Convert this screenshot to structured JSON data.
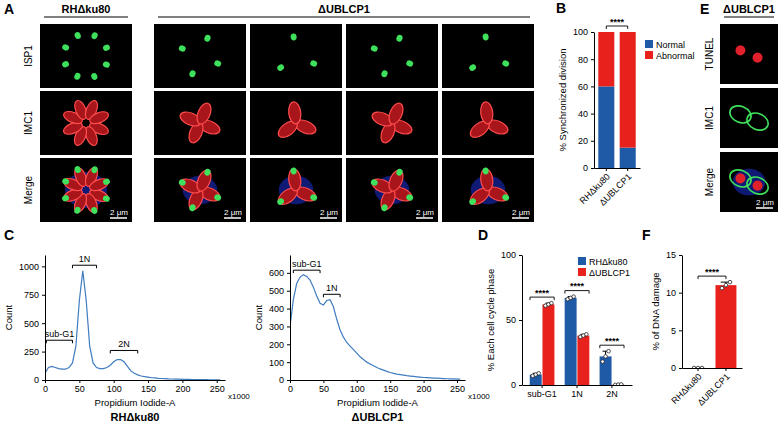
{
  "figure_panels": [
    {
      "panel": "A",
      "columns": [
        "RHΔku80",
        "ΔUBLCP1",
        "ΔUBLCP1",
        "ΔUBLCP1",
        "ΔUBLCP1"
      ],
      "rows": [
        "ISP1",
        "IMC1",
        "Merge"
      ],
      "scale_bar": "2 μm"
    },
    {
      "panel": "E",
      "columns": [
        "ΔUBLCP1"
      ],
      "rows": [
        "TUNEL",
        "IMC1",
        "Merge"
      ],
      "scale_bar": "2 μm"
    }
  ],
  "chart_data": [
    {
      "panel": "B",
      "type": "bar",
      "stacked": true,
      "categories": [
        "RHΔku80",
        "ΔUBLCP1"
      ],
      "series": [
        {
          "name": "Normal",
          "color": "#1f5aa6",
          "values": [
            60,
            15
          ]
        },
        {
          "name": "Abnormal",
          "color": "#e8211c",
          "values": [
            40,
            85
          ]
        }
      ],
      "ylim": [
        0,
        100
      ],
      "yticks": [
        0,
        20,
        40,
        60,
        80,
        100
      ],
      "y_label": "% Synchronized division",
      "legend": "right",
      "annotations": [
        {
          "text": "****",
          "between": [
            "RHΔku80",
            "ΔUBLCP1"
          ]
        }
      ]
    },
    {
      "panel": "C",
      "type": "line",
      "title": "RHΔku80",
      "x_label": "Propidium Iodide-A",
      "y_label": "Count",
      "x_unit": "x1000",
      "color": "#3f7cc0",
      "x": [
        0,
        5,
        10,
        15,
        20,
        25,
        30,
        35,
        40,
        45,
        50,
        55,
        60,
        65,
        70,
        75,
        80,
        85,
        90,
        95,
        100,
        105,
        110,
        115,
        120,
        125,
        130,
        135,
        140,
        145,
        150,
        155,
        160,
        165,
        170,
        175,
        180,
        185,
        190,
        195,
        200,
        205,
        210,
        215,
        220,
        225,
        230,
        235,
        240,
        245,
        250,
        255
      ],
      "values": [
        60,
        110,
        120,
        110,
        100,
        95,
        95,
        110,
        150,
        300,
        700,
        960,
        700,
        300,
        150,
        110,
        100,
        100,
        110,
        130,
        160,
        180,
        180,
        160,
        120,
        80,
        60,
        45,
        35,
        30,
        25,
        20,
        18,
        15,
        13,
        12,
        10,
        9,
        8,
        7,
        6,
        5,
        5,
        4,
        4,
        3,
        3,
        3,
        2,
        2,
        2,
        1
      ],
      "xlim": [
        0,
        262
      ],
      "xticks": [
        0,
        50,
        100,
        150,
        200,
        250
      ],
      "ylim": [
        0,
        1100
      ],
      "yticks": [
        0,
        250,
        500,
        750,
        1000
      ],
      "annotations": [
        {
          "text": "sub-G1",
          "x": [
            2,
            40
          ],
          "y": 350
        },
        {
          "text": "1N",
          "x": [
            40,
            75
          ],
          "y": 1010
        },
        {
          "text": "2N",
          "x": [
            95,
            135
          ],
          "y": 260
        }
      ]
    },
    {
      "type": "line",
      "title": "ΔUBLCP1",
      "x_label": "Propidium Iodide-A",
      "y_label": "Count",
      "x_unit": "x1000",
      "color": "#3f7cc0",
      "x": [
        0,
        5,
        10,
        15,
        20,
        25,
        30,
        35,
        40,
        45,
        50,
        55,
        60,
        65,
        70,
        75,
        80,
        85,
        90,
        95,
        100,
        105,
        110,
        115,
        120,
        125,
        130,
        135,
        140,
        145,
        150,
        155,
        160,
        165,
        170,
        175,
        180,
        185,
        190,
        195,
        200,
        205,
        210,
        215,
        220,
        225,
        230,
        235,
        240,
        245,
        250,
        255
      ],
      "values": [
        300,
        450,
        540,
        575,
        590,
        580,
        560,
        520,
        470,
        430,
        420,
        445,
        450,
        410,
        340,
        280,
        240,
        210,
        190,
        170,
        150,
        130,
        115,
        100,
        90,
        80,
        70,
        62,
        55,
        48,
        42,
        37,
        33,
        30,
        27,
        24,
        22,
        20,
        18,
        16,
        14,
        13,
        12,
        11,
        10,
        9,
        8,
        7,
        6,
        6,
        5,
        5
      ],
      "xlim": [
        0,
        262
      ],
      "xticks": [
        0,
        50,
        100,
        150,
        200,
        250
      ],
      "ylim": [
        0,
        700
      ],
      "yticks": [
        0,
        100,
        200,
        300,
        400,
        500,
        600
      ],
      "annotations": [
        {
          "text": "sub-G1",
          "x": [
            5,
            45
          ],
          "y": 615
        },
        {
          "text": "1N",
          "x": [
            50,
            75
          ],
          "y": 480
        }
      ]
    },
    {
      "panel": "D",
      "type": "bar",
      "categories": [
        "sub-G1",
        "1N",
        "2N"
      ],
      "series": [
        {
          "name": "RHΔku80",
          "color": "#1f5aa6",
          "values": [
            8,
            67,
            22
          ],
          "errors": [
            1,
            1,
            4
          ],
          "points": [
            [
              7,
              8,
              9
            ],
            [
              66,
              67,
              68
            ],
            [
              18,
              22,
              26
            ]
          ]
        },
        {
          "name": "ΔUBLCP1",
          "color": "#e8211c",
          "values": [
            62,
            38,
            0.3
          ],
          "errors": [
            1,
            1,
            0.2
          ],
          "points": [
            [
              61,
              62,
              63
            ],
            [
              37,
              38,
              39
            ],
            [
              0.1,
              0.3,
              0.5
            ]
          ]
        }
      ],
      "ylim": [
        0,
        100
      ],
      "yticks": [
        0,
        50,
        100
      ],
      "y_label": "% Each cell cycle phase",
      "legend": "top-right",
      "annotations": [
        {
          "text": "****",
          "category": "sub-G1"
        },
        {
          "text": "****",
          "category": "1N"
        },
        {
          "text": "****",
          "category": "2N"
        }
      ]
    },
    {
      "panel": "F",
      "type": "bar",
      "categories": [
        "RHΔku80",
        "ΔUBLCP1"
      ],
      "values": [
        0,
        11
      ],
      "colors": [
        "#1f5aa6",
        "#e8211c"
      ],
      "errors": [
        0,
        0.4
      ],
      "points": [
        [
          0,
          0,
          0
        ],
        [
          10.6,
          11,
          11.4
        ]
      ],
      "ylim": [
        0,
        15
      ],
      "yticks": [
        0,
        5,
        10,
        15
      ],
      "y_label": "% of DNA damage",
      "annotations": [
        {
          "text": "****",
          "between": [
            "RHΔku80",
            "ΔUBLCP1"
          ]
        }
      ]
    }
  ]
}
